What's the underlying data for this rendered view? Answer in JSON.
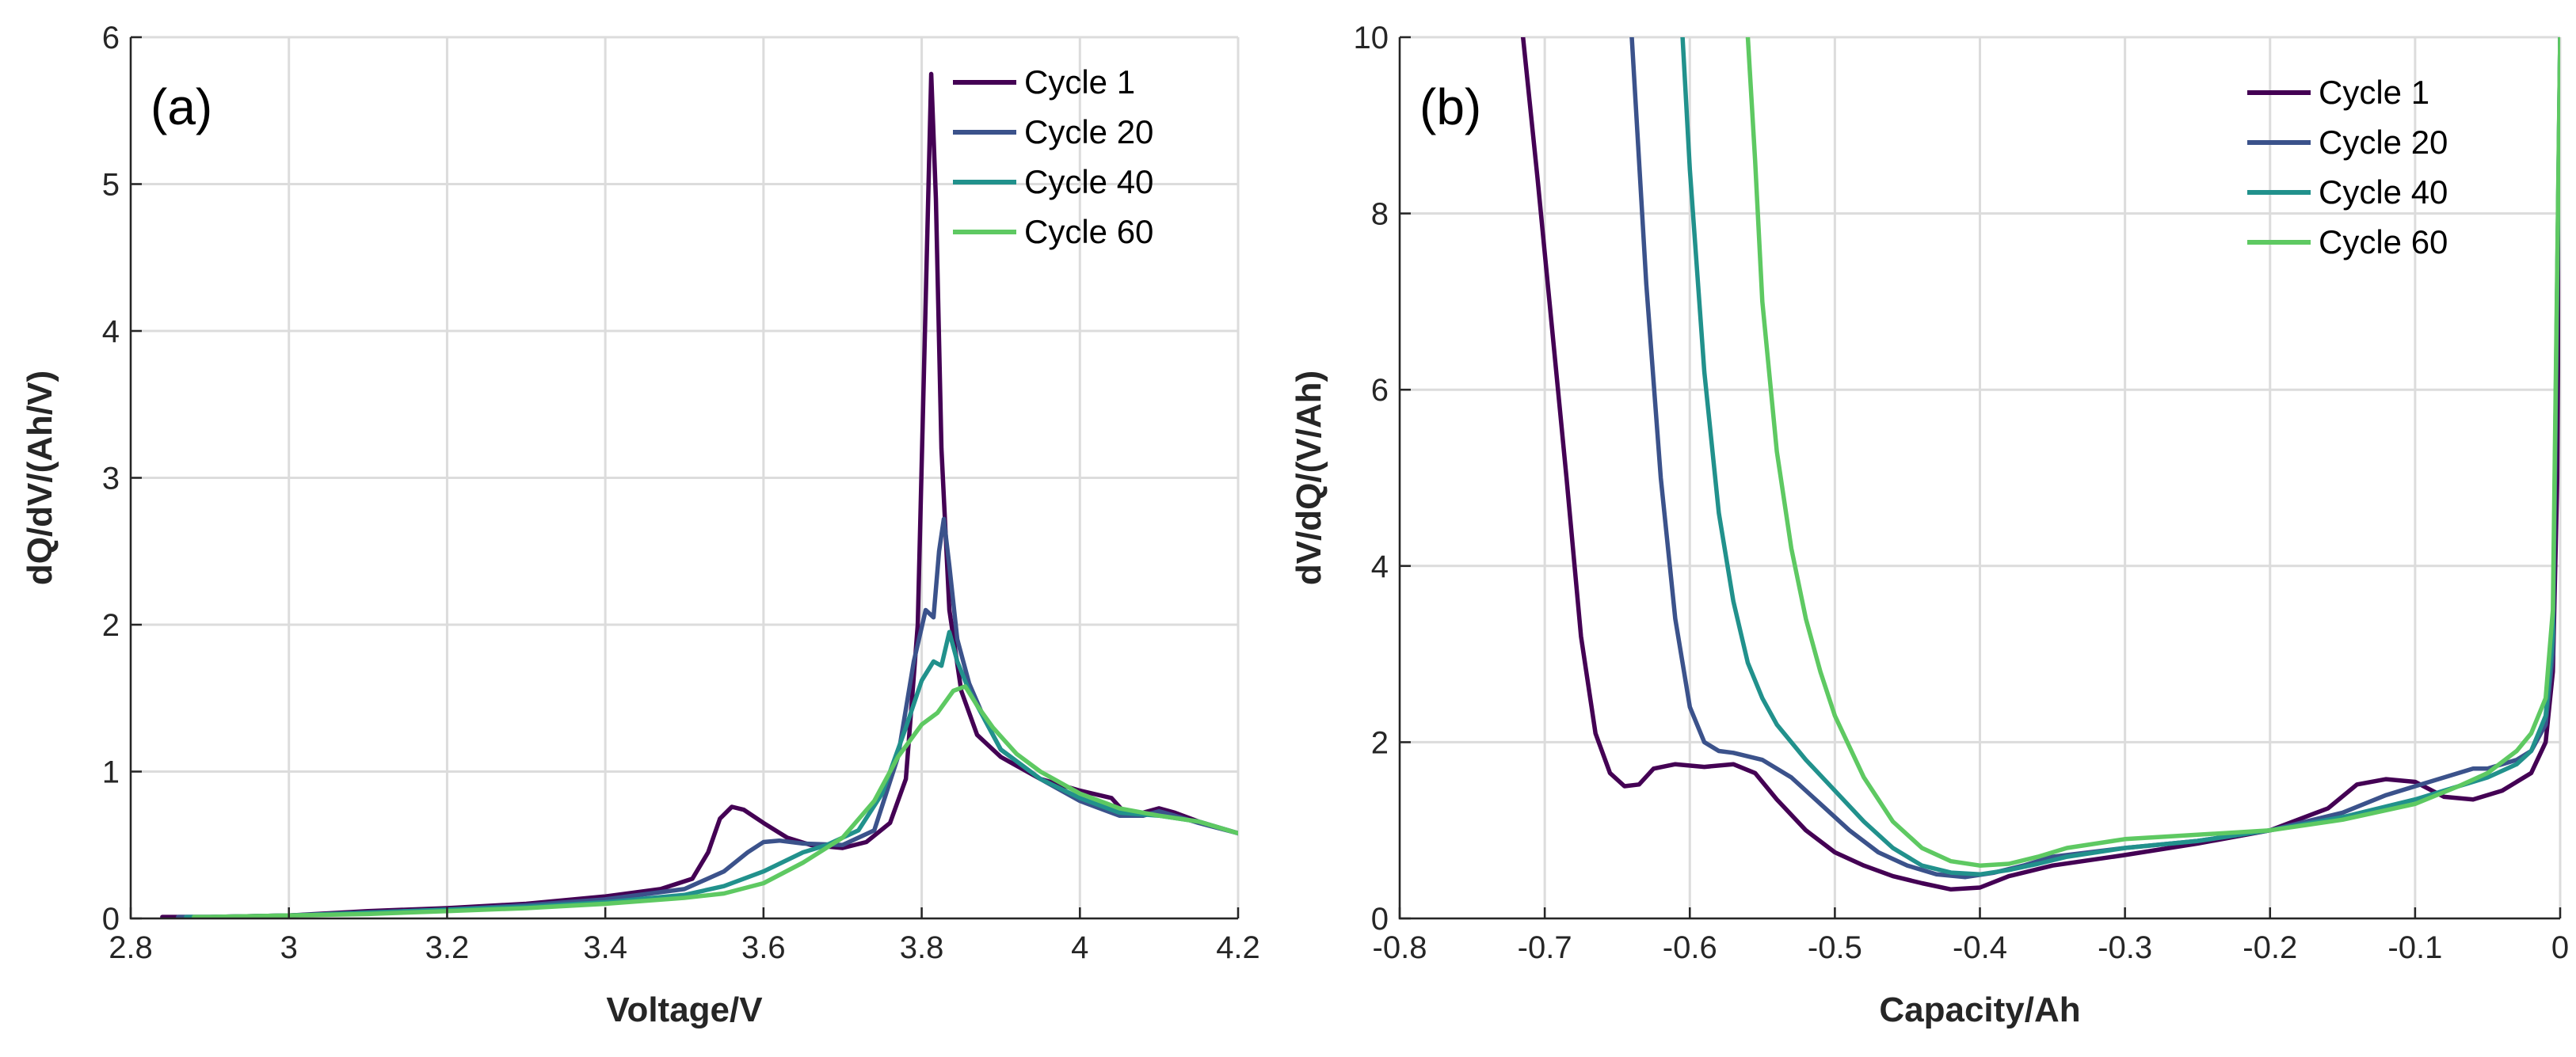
{
  "chart_data": [
    {
      "type": "line",
      "panel_label": "(a)",
      "xlabel": "Voltage/V",
      "ylabel": "dQ/dV/(Ah/V)",
      "xlim": [
        2.8,
        4.2
      ],
      "ylim": [
        0,
        6
      ],
      "xticks": [
        2.8,
        3,
        3.2,
        3.4,
        3.6,
        3.8,
        4,
        4.2
      ],
      "xtick_labels": [
        "2.8",
        "3",
        "3.2",
        "3.4",
        "3.6",
        "3.8",
        "4",
        "4.2"
      ],
      "yticks": [
        0,
        1,
        2,
        3,
        4,
        5,
        6
      ],
      "ytick_labels": [
        "0",
        "1",
        "2",
        "3",
        "4",
        "5",
        "6"
      ],
      "grid": true,
      "legend_position": "top-right",
      "series": [
        {
          "name": "Cycle 1",
          "color": "#440154",
          "x": [
            2.84,
            2.9,
            3.0,
            3.1,
            3.2,
            3.3,
            3.4,
            3.47,
            3.51,
            3.53,
            3.545,
            3.56,
            3.575,
            3.6,
            3.63,
            3.66,
            3.7,
            3.73,
            3.76,
            3.78,
            3.795,
            3.805,
            3.812,
            3.818,
            3.825,
            3.835,
            3.85,
            3.87,
            3.9,
            3.95,
            4.0,
            4.04,
            4.06,
            4.08,
            4.1,
            4.12,
            4.15,
            4.2
          ],
          "y": [
            0.01,
            0.01,
            0.02,
            0.05,
            0.07,
            0.1,
            0.15,
            0.2,
            0.27,
            0.45,
            0.68,
            0.76,
            0.74,
            0.65,
            0.55,
            0.5,
            0.48,
            0.52,
            0.65,
            0.95,
            2.0,
            4.2,
            5.75,
            4.9,
            3.2,
            2.1,
            1.55,
            1.25,
            1.1,
            0.95,
            0.87,
            0.82,
            0.7,
            0.72,
            0.75,
            0.72,
            0.66,
            0.58
          ]
        },
        {
          "name": "Cycle 20",
          "color": "#3b528b",
          "x": [
            2.86,
            2.9,
            3.0,
            3.1,
            3.2,
            3.3,
            3.4,
            3.5,
            3.55,
            3.58,
            3.6,
            3.62,
            3.65,
            3.7,
            3.74,
            3.77,
            3.79,
            3.805,
            3.815,
            3.822,
            3.828,
            3.835,
            3.845,
            3.86,
            3.88,
            3.9,
            3.95,
            4.0,
            4.05,
            4.08,
            4.1,
            4.12,
            4.15,
            4.2
          ],
          "y": [
            0.01,
            0.01,
            0.02,
            0.04,
            0.06,
            0.09,
            0.13,
            0.2,
            0.32,
            0.45,
            0.52,
            0.53,
            0.51,
            0.5,
            0.6,
            1.1,
            1.75,
            2.1,
            2.05,
            2.5,
            2.72,
            2.4,
            1.9,
            1.6,
            1.35,
            1.15,
            0.95,
            0.8,
            0.7,
            0.7,
            0.73,
            0.7,
            0.65,
            0.58
          ]
        },
        {
          "name": "Cycle 40",
          "color": "#21918c",
          "x": [
            2.87,
            2.9,
            3.0,
            3.1,
            3.2,
            3.3,
            3.4,
            3.5,
            3.55,
            3.6,
            3.65,
            3.68,
            3.72,
            3.75,
            3.78,
            3.8,
            3.815,
            3.825,
            3.835,
            3.845,
            3.86,
            3.88,
            3.9,
            3.95,
            4.0,
            4.05,
            4.1,
            4.15,
            4.2
          ],
          "y": [
            0.01,
            0.01,
            0.02,
            0.04,
            0.06,
            0.08,
            0.11,
            0.16,
            0.22,
            0.32,
            0.45,
            0.5,
            0.6,
            0.85,
            1.3,
            1.62,
            1.75,
            1.72,
            1.95,
            1.75,
            1.55,
            1.35,
            1.15,
            0.95,
            0.82,
            0.72,
            0.7,
            0.66,
            0.58
          ]
        },
        {
          "name": "Cycle 60",
          "color": "#5ec962",
          "x": [
            2.88,
            2.9,
            3.0,
            3.1,
            3.2,
            3.3,
            3.4,
            3.5,
            3.55,
            3.6,
            3.65,
            3.7,
            3.74,
            3.77,
            3.8,
            3.82,
            3.84,
            3.855,
            3.87,
            3.89,
            3.92,
            3.95,
            4.0,
            4.05,
            4.1,
            4.15,
            4.2
          ],
          "y": [
            0.01,
            0.01,
            0.02,
            0.03,
            0.05,
            0.07,
            0.1,
            0.14,
            0.17,
            0.24,
            0.38,
            0.55,
            0.8,
            1.1,
            1.32,
            1.4,
            1.55,
            1.58,
            1.45,
            1.3,
            1.12,
            1.0,
            0.85,
            0.75,
            0.7,
            0.66,
            0.58
          ]
        }
      ]
    },
    {
      "type": "line",
      "panel_label": "(b)",
      "xlabel": "Capacity/Ah",
      "ylabel": "dV/dQ/(V/Ah)",
      "xlim": [
        -0.8,
        0
      ],
      "ylim": [
        0,
        10
      ],
      "xticks": [
        -0.8,
        -0.7,
        -0.6,
        -0.5,
        -0.4,
        -0.3,
        -0.2,
        -0.1,
        0
      ],
      "xtick_labels": [
        "-0.8",
        "-0.7",
        "-0.6",
        "-0.5",
        "-0.4",
        "-0.3",
        "-0.2",
        "-0.1",
        "0"
      ],
      "yticks": [
        0,
        2,
        4,
        6,
        8,
        10
      ],
      "ytick_labels": [
        "0",
        "2",
        "4",
        "6",
        "8",
        "10"
      ],
      "grid": true,
      "legend_position": "top-right",
      "series": [
        {
          "name": "Cycle 1",
          "color": "#440154",
          "x": [
            -0.715,
            -0.705,
            -0.695,
            -0.685,
            -0.675,
            -0.665,
            -0.655,
            -0.645,
            -0.635,
            -0.625,
            -0.61,
            -0.59,
            -0.57,
            -0.555,
            -0.54,
            -0.52,
            -0.5,
            -0.48,
            -0.46,
            -0.44,
            -0.42,
            -0.4,
            -0.38,
            -0.35,
            -0.3,
            -0.25,
            -0.2,
            -0.16,
            -0.14,
            -0.12,
            -0.1,
            -0.08,
            -0.06,
            -0.04,
            -0.02,
            -0.01,
            -0.005,
            -0.002,
            0.0
          ],
          "y": [
            10.0,
            8.4,
            6.7,
            5.0,
            3.2,
            2.1,
            1.65,
            1.5,
            1.52,
            1.7,
            1.75,
            1.72,
            1.75,
            1.65,
            1.35,
            1.0,
            0.75,
            0.6,
            0.48,
            0.4,
            0.33,
            0.35,
            0.48,
            0.6,
            0.72,
            0.85,
            1.0,
            1.25,
            1.52,
            1.58,
            1.55,
            1.38,
            1.35,
            1.45,
            1.65,
            2.0,
            2.8,
            5.0,
            10.0
          ]
        },
        {
          "name": "Cycle 20",
          "color": "#3b528b",
          "x": [
            -0.64,
            -0.63,
            -0.62,
            -0.61,
            -0.6,
            -0.59,
            -0.58,
            -0.57,
            -0.55,
            -0.53,
            -0.51,
            -0.49,
            -0.47,
            -0.45,
            -0.43,
            -0.41,
            -0.39,
            -0.37,
            -0.35,
            -0.3,
            -0.25,
            -0.2,
            -0.15,
            -0.12,
            -0.1,
            -0.08,
            -0.06,
            -0.05,
            -0.04,
            -0.03,
            -0.02,
            -0.01,
            -0.005,
            0.0
          ],
          "y": [
            10.0,
            7.2,
            5.0,
            3.4,
            2.4,
            2.0,
            1.9,
            1.88,
            1.8,
            1.6,
            1.3,
            1.0,
            0.75,
            0.6,
            0.5,
            0.47,
            0.52,
            0.6,
            0.7,
            0.8,
            0.88,
            1.0,
            1.2,
            1.4,
            1.5,
            1.6,
            1.7,
            1.7,
            1.75,
            1.8,
            1.9,
            2.2,
            3.0,
            10.0
          ]
        },
        {
          "name": "Cycle 40",
          "color": "#21918c",
          "x": [
            -0.605,
            -0.6,
            -0.59,
            -0.58,
            -0.57,
            -0.56,
            -0.55,
            -0.54,
            -0.52,
            -0.5,
            -0.48,
            -0.46,
            -0.44,
            -0.42,
            -0.4,
            -0.38,
            -0.36,
            -0.34,
            -0.3,
            -0.25,
            -0.2,
            -0.15,
            -0.1,
            -0.07,
            -0.05,
            -0.03,
            -0.02,
            -0.01,
            -0.005,
            0.0
          ],
          "y": [
            10.0,
            8.5,
            6.2,
            4.6,
            3.6,
            2.9,
            2.5,
            2.2,
            1.8,
            1.45,
            1.1,
            0.8,
            0.6,
            0.52,
            0.5,
            0.55,
            0.62,
            0.7,
            0.8,
            0.88,
            1.0,
            1.15,
            1.35,
            1.5,
            1.6,
            1.75,
            1.9,
            2.3,
            3.2,
            10.0
          ]
        },
        {
          "name": "Cycle 60",
          "color": "#5ec962",
          "x": [
            -0.56,
            -0.555,
            -0.55,
            -0.54,
            -0.53,
            -0.52,
            -0.51,
            -0.5,
            -0.48,
            -0.46,
            -0.44,
            -0.42,
            -0.4,
            -0.38,
            -0.36,
            -0.34,
            -0.3,
            -0.25,
            -0.2,
            -0.15,
            -0.1,
            -0.07,
            -0.05,
            -0.03,
            -0.02,
            -0.01,
            -0.005,
            0.0
          ],
          "y": [
            10.0,
            8.6,
            7.0,
            5.3,
            4.2,
            3.4,
            2.8,
            2.3,
            1.6,
            1.1,
            0.8,
            0.65,
            0.6,
            0.62,
            0.7,
            0.8,
            0.9,
            0.95,
            1.0,
            1.12,
            1.3,
            1.5,
            1.65,
            1.9,
            2.1,
            2.5,
            3.5,
            10.0
          ]
        }
      ]
    }
  ]
}
